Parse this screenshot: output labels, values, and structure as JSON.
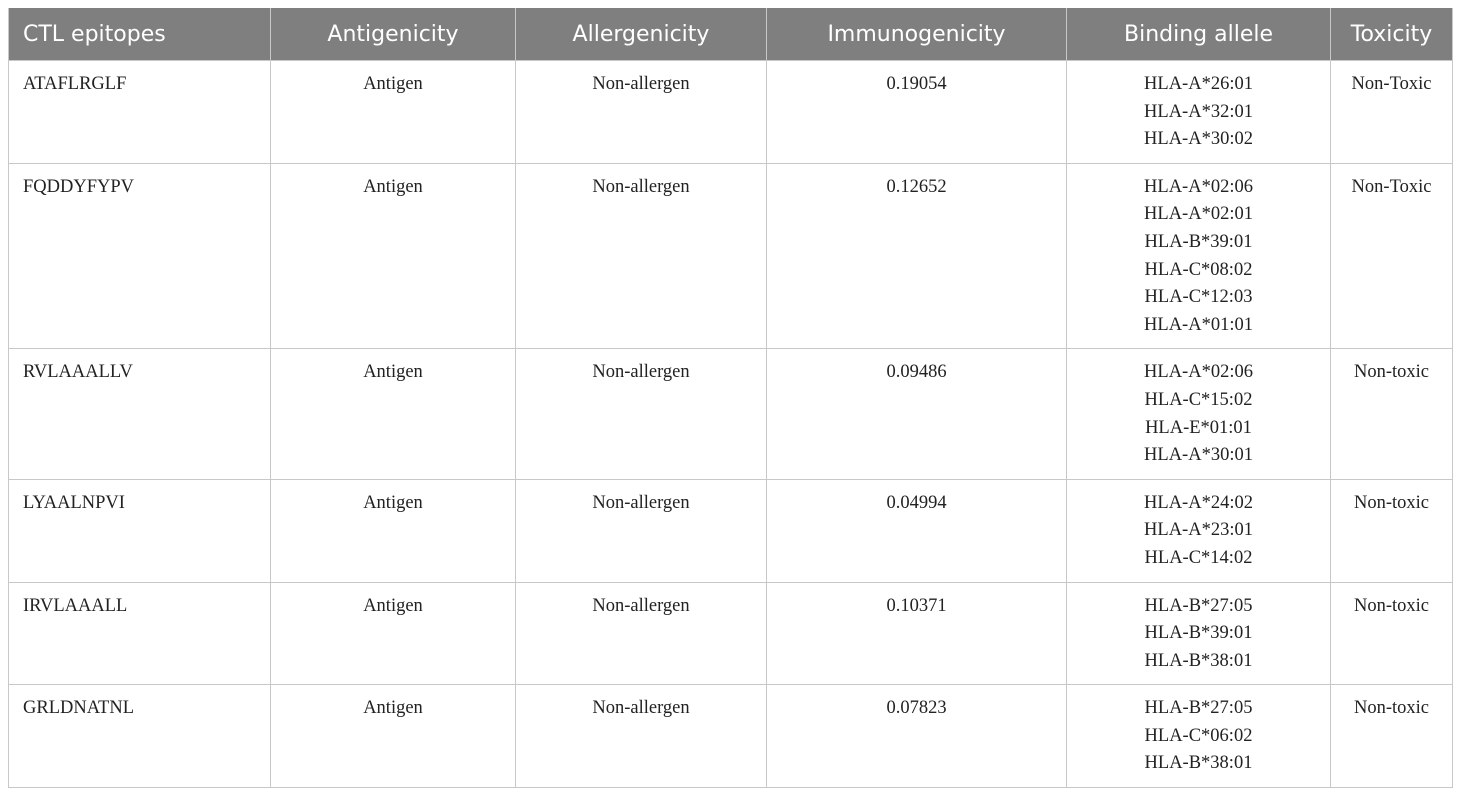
{
  "table": {
    "header": [
      "CTL epitopes",
      "Antigenicity",
      "Allergenicity",
      "Immunogenicity",
      "Binding allele",
      "Toxicity"
    ],
    "rows": [
      [
        "ATAFLRGLF",
        "Antigen",
        "Non-allergen",
        0.19054,
        [
          "HLA-A*26:01",
          "HLA-A*32:01",
          "HLA-A*30:02"
        ],
        "Non-Toxic"
      ],
      [
        "FQDDYFYPV",
        "Antigen",
        "Non-allergen",
        0.12652,
        [
          "HLA-A*02:06",
          "HLA-A*02:01",
          "HLA-B*39:01",
          "HLA-C*08:02",
          "HLA-C*12:03",
          "HLA-A*01:01"
        ],
        "Non-Toxic"
      ],
      [
        "RVLAAALLV",
        "Antigen",
        "Non-allergen",
        0.09486,
        [
          "HLA-A*02:06",
          "HLA-C*15:02",
          "HLA-E*01:01",
          "HLA-A*30:01"
        ],
        "Non-toxic"
      ],
      [
        "LYAALNPVI",
        "Antigen",
        "Non-allergen",
        0.04994,
        [
          "HLA-A*24:02",
          "HLA-A*23:01",
          "HLA-C*14:02"
        ],
        "Non-toxic"
      ],
      [
        "IRVLAAALL",
        "Antigen",
        "Non-allergen",
        0.10371,
        [
          "HLA-B*27:05",
          "HLA-B*39:01",
          "HLA-B*38:01"
        ],
        "Non-toxic"
      ],
      [
        "GRLDNATNL",
        "Antigen",
        "Non-allergen",
        0.07823,
        [
          "HLA-B*27:05",
          "HLA-C*06:02",
          "HLA-B*38:01"
        ],
        "Non-toxic"
      ]
    ]
  }
}
